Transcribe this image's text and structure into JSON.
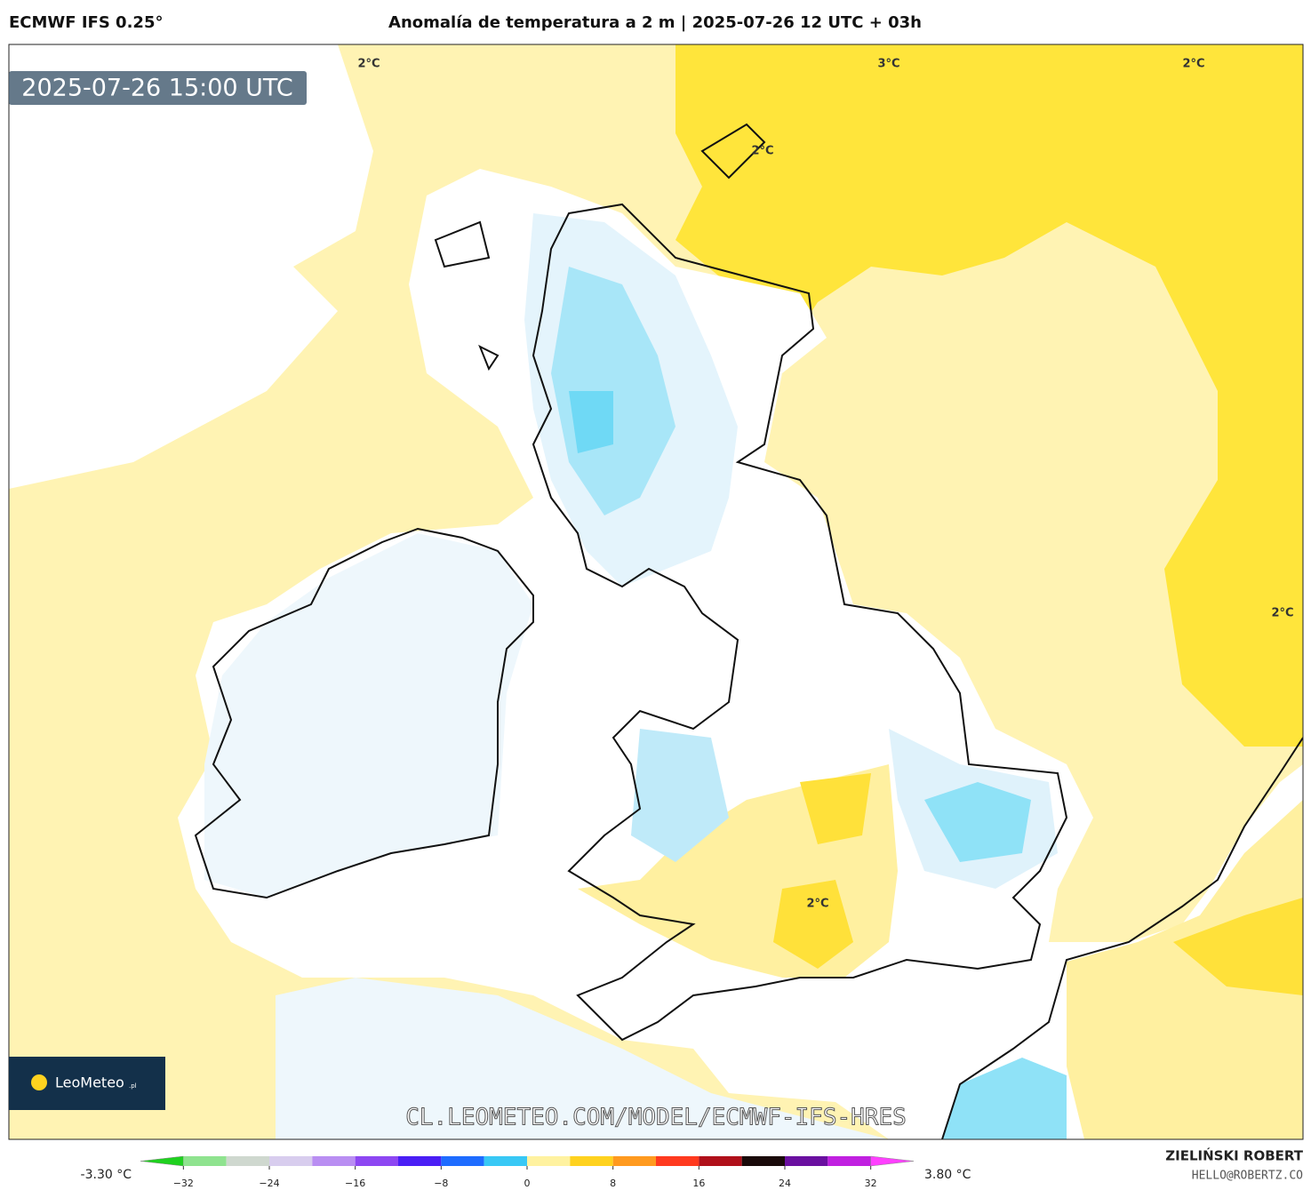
{
  "header": {
    "model": "ECMWF IFS 0.25°",
    "title": "Anomalía de temperatura a 2 m | 2025-07-26 12 UTC + 03h"
  },
  "map": {
    "valid_time": "2025-07-26 15:00 UTC",
    "contour_labels": [
      "2°C",
      "3°C",
      "2°C",
      "2°C",
      "2°C",
      "2°C"
    ],
    "watermark": "CL.LEOMETEO.COM/MODEL/ECMWF-IFS-HRES",
    "logo": "LeoMeteo",
    "logo_suffix": ".pl"
  },
  "colorbar": {
    "min_label": "-3.30 °C",
    "max_label": "3.80 °C",
    "range": [
      -36,
      36
    ],
    "ticks": [
      {
        "value": -32,
        "label": "−32"
      },
      {
        "value": -24,
        "label": "−24"
      },
      {
        "value": -16,
        "label": "−16"
      },
      {
        "value": -8,
        "label": "−8"
      },
      0,
      8,
      16,
      24,
      32
    ],
    "colors": [
      "#1fd11f",
      "#8fe38f",
      "#cfd8cf",
      "#d8cdee",
      "#b98ef2",
      "#8d47f2",
      "#4a1ef5",
      "#1e6cff",
      "#38c8f5",
      "#fff2a0",
      "#ffd21f",
      "#ff9a1f",
      "#ff3a1f",
      "#b0101a",
      "#1a0a0a",
      "#6a10a0",
      "#c020e0",
      "#ff40ff"
    ]
  },
  "footer": {
    "author": "ZIELIŃSKI ROBERT",
    "contact": "HELLO@ROBERTZ.CO"
  }
}
